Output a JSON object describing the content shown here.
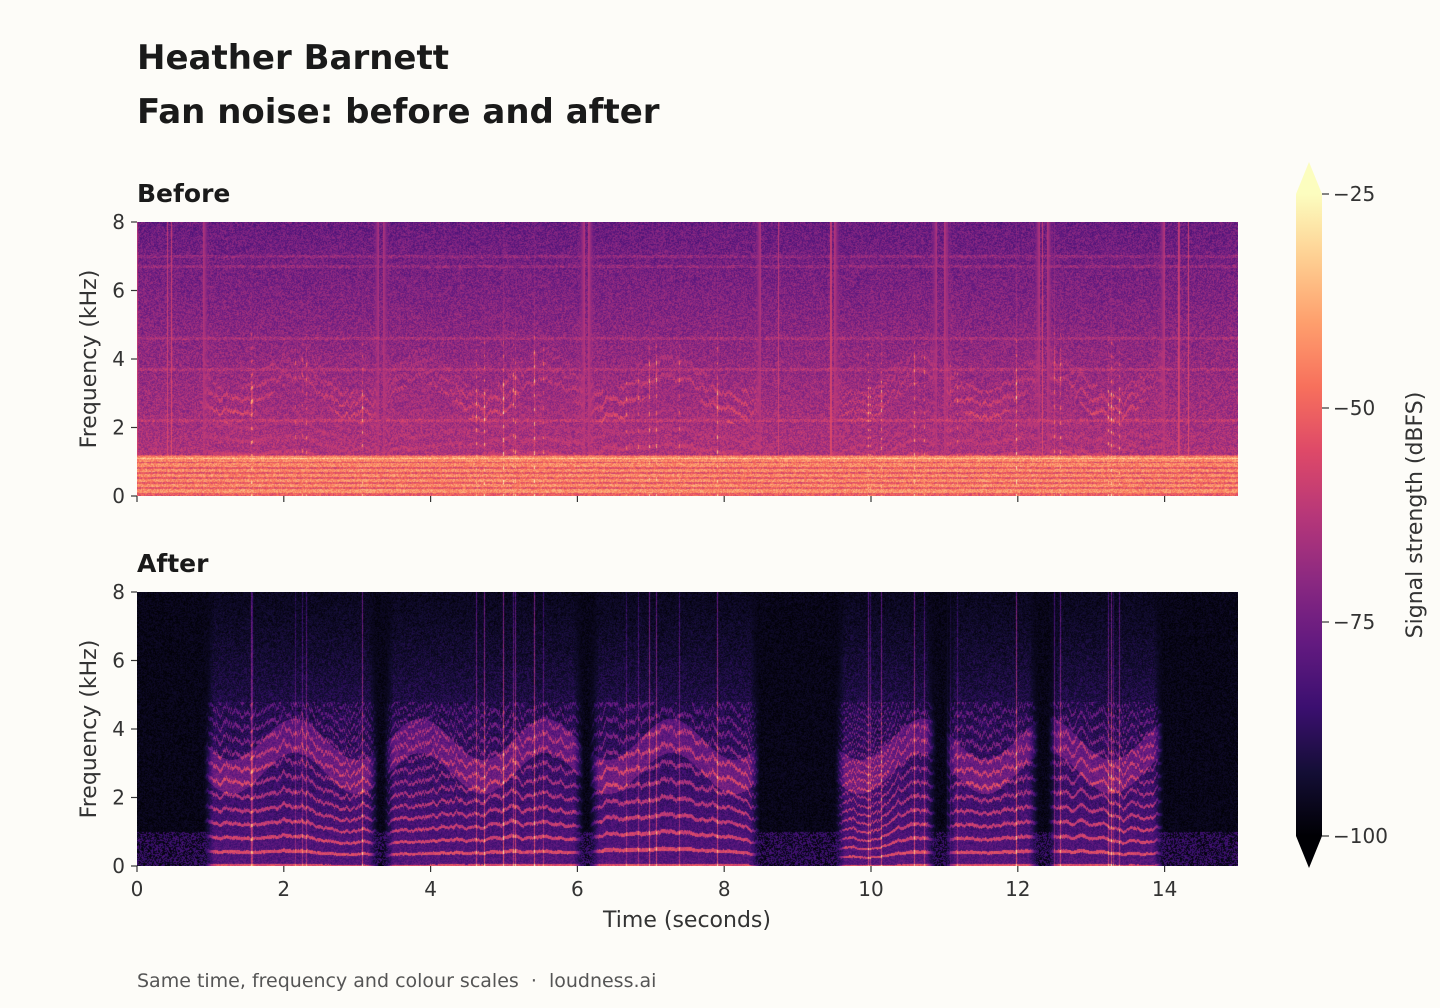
{
  "header": {
    "title_line1": "Heather Barnett",
    "title_line2": "Fan noise: before and after"
  },
  "footer": {
    "note": "Same time, frequency and colour scales",
    "separator": "·",
    "brand": "loudness.ai"
  },
  "chart_data": [
    {
      "type": "heatmap",
      "title": "Before",
      "xlabel": "",
      "ylabel": "Frequency (kHz)",
      "xlim": [
        0,
        15
      ],
      "ylim": [
        0,
        8
      ],
      "xticks": [
        0,
        2,
        4,
        6,
        8,
        10,
        12,
        14
      ],
      "yticks": [
        0,
        2,
        4,
        6,
        8
      ],
      "show_xtick_labels": false,
      "colormap": "magma",
      "noise_floor_dbfs": -62,
      "speech_segments_seconds": [
        [
          0.9,
          3.3
        ],
        [
          3.35,
          6.1
        ],
        [
          6.15,
          8.5
        ],
        [
          9.5,
          10.9
        ],
        [
          11.0,
          12.3
        ],
        [
          12.4,
          14.0
        ]
      ]
    },
    {
      "type": "heatmap",
      "title": "After",
      "xlabel": "Time (seconds)",
      "ylabel": "Frequency (kHz)",
      "xlim": [
        0,
        15
      ],
      "ylim": [
        0,
        8
      ],
      "xticks": [
        0,
        2,
        4,
        6,
        8,
        10,
        12,
        14
      ],
      "yticks": [
        0,
        2,
        4,
        6,
        8
      ],
      "show_xtick_labels": true,
      "colormap": "magma",
      "noise_floor_dbfs": -100,
      "speech_segments_seconds": [
        [
          0.9,
          3.3
        ],
        [
          3.35,
          6.1
        ],
        [
          6.15,
          8.5
        ],
        [
          9.5,
          10.9
        ],
        [
          11.0,
          12.3
        ],
        [
          12.4,
          14.0
        ]
      ]
    }
  ],
  "colorbar": {
    "label": "Signal strength (dBFS)",
    "min": -100,
    "max": -25,
    "ticks": [
      -25,
      -50,
      -75,
      -100
    ],
    "tick_labels": [
      "−25",
      "−50",
      "−75",
      "−100"
    ],
    "extend": "both",
    "colormap": "magma"
  },
  "colors": {
    "background": "#fdfcf8",
    "text": "#1a1a1a",
    "axis_text": "#333333",
    "footer_text": "#555555"
  }
}
